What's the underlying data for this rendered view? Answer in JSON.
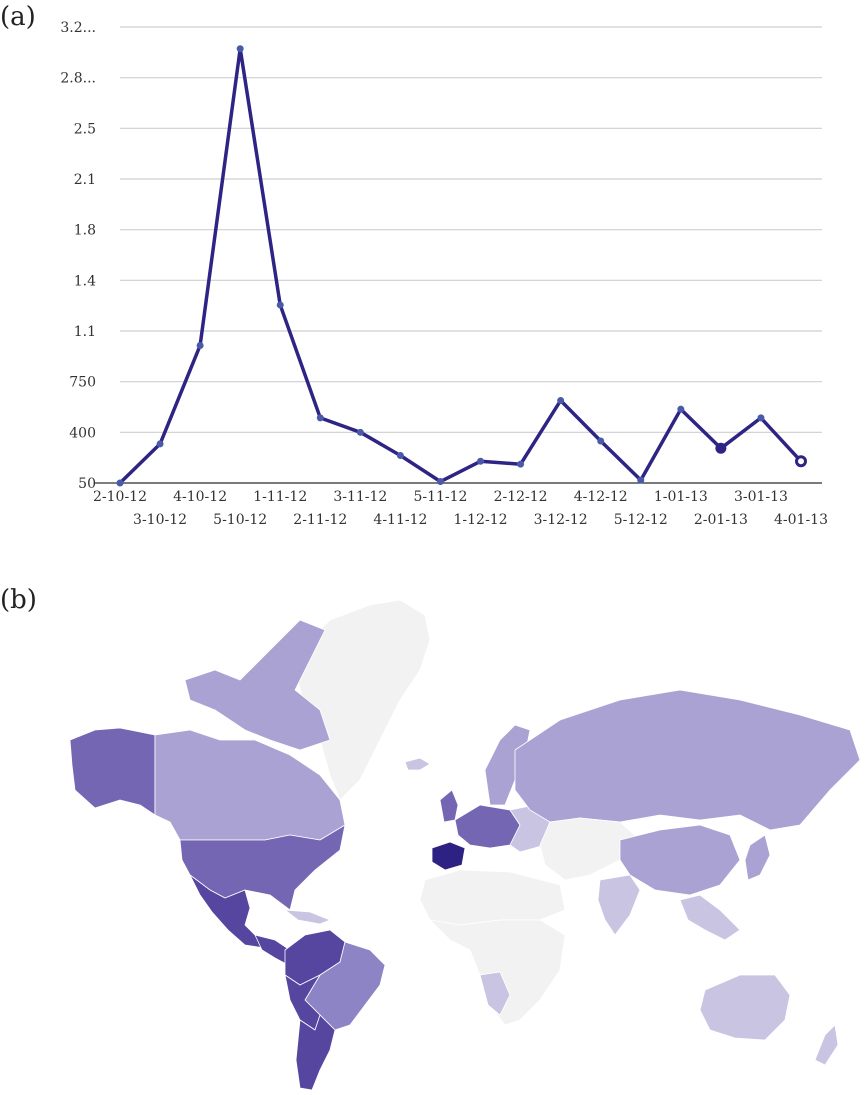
{
  "panels": {
    "a": "(a)",
    "b": "(b)"
  },
  "chart_data": {
    "type": "line",
    "title": "",
    "xlabel": "",
    "ylabel": "",
    "y_tick_labels": [
      "50",
      "400",
      "750",
      "1.1",
      "1.4",
      "1.8",
      "2.1",
      "2.5",
      "2.8...",
      "3.2..."
    ],
    "x": [
      "2-10-12",
      "3-10-12",
      "4-10-12",
      "5-10-12",
      "1-11-12",
      "2-11-12",
      "3-11-12",
      "4-11-12",
      "5-11-12",
      "1-12-12",
      "2-12-12",
      "3-12-12",
      "4-12-12",
      "5-12-12",
      "1-01-13",
      "2-01-13",
      "3-01-13",
      "4-01-13"
    ],
    "series": [
      {
        "values": [
          50,
          320,
          1000,
          3050,
          1280,
          500,
          400,
          240,
          60,
          200,
          180,
          620,
          340,
          70,
          560,
          290,
          500,
          200
        ]
      }
    ],
    "ylim": [
      50,
      3200
    ],
    "grid": true,
    "legend": "none",
    "colors": {
      "line": "#2e2484",
      "marker": "#4a5aa8",
      "grid": "#cfcfcf"
    }
  },
  "map": {
    "type": "choropleth",
    "colors": {
      "none": "#f2f2f2",
      "low": "#c9c4e2",
      "light": "#a9a2d3",
      "medium": "#8c84c4",
      "high": "#7466b3",
      "dark": "#5646a0",
      "darkest": "#2d2183"
    }
  }
}
